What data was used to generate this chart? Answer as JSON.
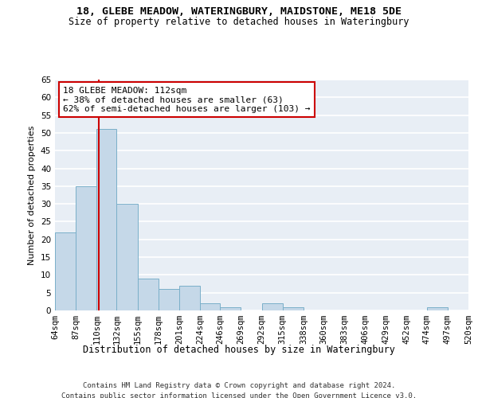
{
  "title1": "18, GLEBE MEADOW, WATERINGBURY, MAIDSTONE, ME18 5DE",
  "title2": "Size of property relative to detached houses in Wateringbury",
  "xlabel": "Distribution of detached houses by size in Wateringbury",
  "ylabel": "Number of detached properties",
  "bin_labels": [
    "64sqm",
    "87sqm",
    "110sqm",
    "132sqm",
    "155sqm",
    "178sqm",
    "201sqm",
    "224sqm",
    "246sqm",
    "269sqm",
    "292sqm",
    "315sqm",
    "338sqm",
    "360sqm",
    "383sqm",
    "406sqm",
    "429sqm",
    "452sqm",
    "474sqm",
    "497sqm",
    "520sqm"
  ],
  "bar_values": [
    22,
    35,
    51,
    30,
    9,
    6,
    7,
    2,
    1,
    0,
    2,
    1,
    0,
    0,
    0,
    0,
    0,
    0,
    1,
    0
  ],
  "bin_edges": [
    64,
    87,
    110,
    132,
    155,
    178,
    201,
    224,
    246,
    269,
    292,
    315,
    338,
    360,
    383,
    406,
    429,
    452,
    474,
    497,
    520
  ],
  "bar_color": "#c5d8e8",
  "bar_edge_color": "#7aafc9",
  "vline_x": 112,
  "vline_color": "#cc0000",
  "annotation_line1": "18 GLEBE MEADOW: 112sqm",
  "annotation_line2": "← 38% of detached houses are smaller (63)",
  "annotation_line3": "62% of semi-detached houses are larger (103) →",
  "annotation_box_color": "#ffffff",
  "annotation_box_edge": "#cc0000",
  "ylim": [
    0,
    65
  ],
  "yticks": [
    0,
    5,
    10,
    15,
    20,
    25,
    30,
    35,
    40,
    45,
    50,
    55,
    60,
    65
  ],
  "background_color": "#e8eef5",
  "grid_color": "#ffffff",
  "footer_line1": "Contains HM Land Registry data © Crown copyright and database right 2024.",
  "footer_line2": "Contains public sector information licensed under the Open Government Licence v3.0.",
  "title1_fontsize": 9.5,
  "title2_fontsize": 8.5,
  "xlabel_fontsize": 8.5,
  "ylabel_fontsize": 8,
  "tick_fontsize": 7.5,
  "annotation_fontsize": 8,
  "footer_fontsize": 6.5
}
